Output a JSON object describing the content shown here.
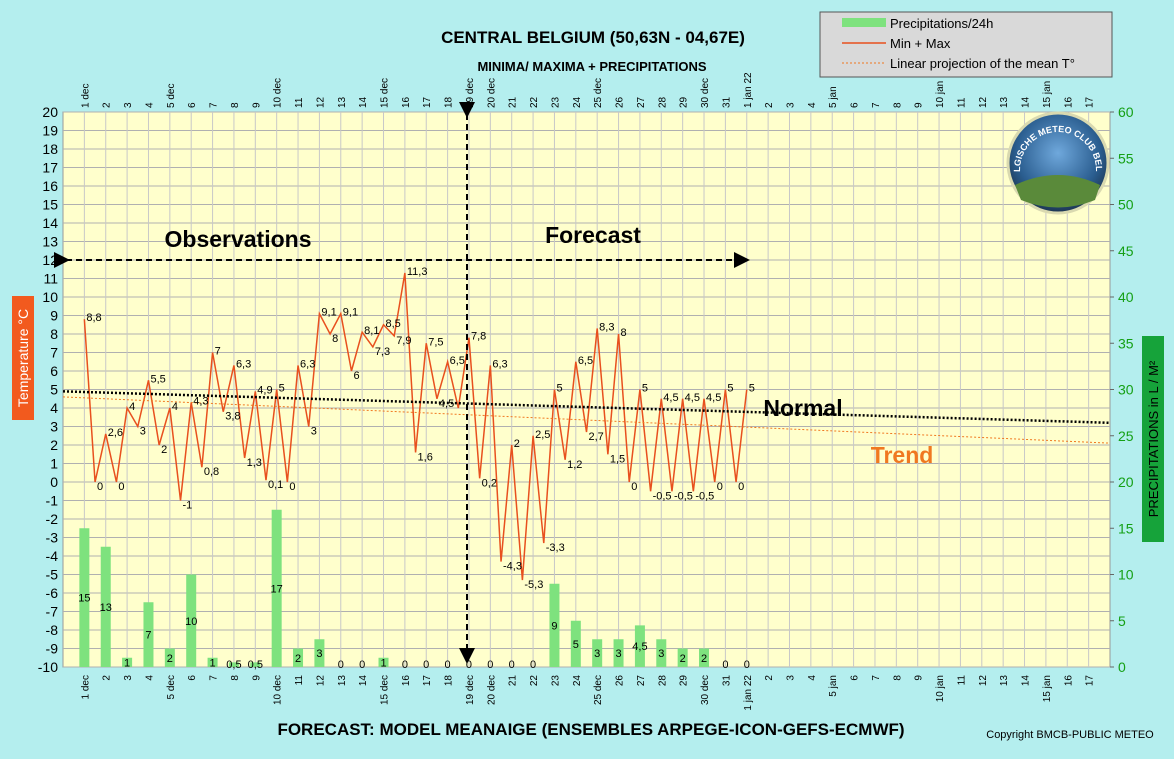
{
  "chart_data": {
    "type": "combo",
    "title": "CENTRAL BELGIUM (50,63N - 04,67E)",
    "subtitle": "MINIMA/ MAXIMA + PRECIPITATIONS",
    "x_label": "FORECAST: MODEL MEANAIGE (ENSEMBLES ARPEGE-ICON-GEFS-ECMWF)",
    "y_label": "Temperature  °C",
    "y2_label": "PRECIPITATIONS in L / M²",
    "copyright": "Copyright BMCB-PUBLIC METEO",
    "logo": "BELGISCHE METEO CLUB BELGE",
    "annotations": {
      "observations": "Observations",
      "forecast": "Forecast",
      "trend": "Trend"
    },
    "xlim": [
      0,
      49
    ],
    "xticks": [
      {
        "value": 1,
        "label": "1 dec"
      },
      2,
      3,
      4,
      {
        "value": 5,
        "label": "5 dec"
      },
      6,
      7,
      8,
      9,
      {
        "value": 10,
        "label": "10 dec"
      },
      11,
      12,
      13,
      14,
      {
        "value": 15,
        "label": "15 dec"
      },
      16,
      17,
      18,
      {
        "value": 19,
        "label": "19 dec"
      },
      {
        "value": 20,
        "label": "20 dec"
      },
      21,
      22,
      23,
      24,
      {
        "value": 25,
        "label": "25 dec"
      },
      26,
      27,
      28,
      29,
      {
        "value": 30,
        "label": "30 dec"
      },
      31,
      {
        "value": 32,
        "label": "1 jan 22"
      },
      {
        "value": 33,
        "label": "2"
      },
      {
        "value": 34,
        "label": "3"
      },
      {
        "value": 35,
        "label": "4"
      },
      {
        "value": 36,
        "label": "5 jan"
      },
      {
        "value": 37,
        "label": "6"
      },
      {
        "value": 38,
        "label": "7"
      },
      {
        "value": 39,
        "label": "8"
      },
      {
        "value": 40,
        "label": "9"
      },
      {
        "value": 41,
        "label": "10 jan"
      },
      {
        "value": 42,
        "label": "11"
      },
      {
        "value": 43,
        "label": "12"
      },
      {
        "value": 44,
        "label": "13"
      },
      {
        "value": 45,
        "label": "14"
      },
      {
        "value": 46,
        "label": "15 jan"
      },
      {
        "value": 47,
        "label": "16"
      },
      {
        "value": 48,
        "label": "17"
      }
    ],
    "ylim": [
      -10,
      20
    ],
    "yticks": [
      -10,
      -9,
      -8,
      -7,
      -6,
      -5,
      -4,
      -3,
      -2,
      -1,
      0,
      1,
      2,
      3,
      4,
      5,
      6,
      7,
      8,
      9,
      10,
      11,
      12,
      13,
      14,
      15,
      16,
      17,
      18,
      19,
      20
    ],
    "y2lim": [
      0,
      60
    ],
    "y2ticks": [
      0,
      5,
      10,
      15,
      20,
      25,
      30,
      35,
      40,
      45,
      50,
      55,
      60
    ],
    "grid": true,
    "legend": "top-right",
    "series": [
      {
        "name": "Precipitations/24h",
        "type": "bar",
        "axis": "y2",
        "color": "#7ee27e",
        "x": [
          1,
          2,
          3,
          4,
          5,
          6,
          7,
          8,
          9,
          10,
          11,
          12,
          13,
          14,
          15,
          16,
          17,
          18,
          19,
          20,
          21,
          22,
          23,
          24,
          25,
          26,
          27,
          28,
          29,
          30,
          31,
          32
        ],
        "values": [
          15,
          13,
          1,
          7,
          2,
          10,
          1,
          0.5,
          0.5,
          17,
          2,
          3,
          0,
          0,
          1,
          0,
          0,
          0,
          0,
          0,
          0,
          0,
          9,
          5,
          3,
          3,
          4.5,
          3,
          2,
          2,
          0,
          0
        ],
        "value_labels": [
          "15",
          "13",
          "1",
          "7",
          "2",
          "10",
          "1",
          "0,5",
          "0,5",
          "17",
          "2",
          "3",
          "0",
          "0",
          "1",
          "0",
          "0",
          "0",
          "0",
          "0",
          "0",
          "0",
          "9",
          "5",
          "3",
          "3",
          "4,5",
          "3",
          "2",
          "2",
          "0",
          "0"
        ]
      },
      {
        "name": "Min + Max",
        "type": "line",
        "color": "#e8501e",
        "x": [
          1,
          1.5,
          2,
          2.5,
          3,
          3.5,
          4,
          4.5,
          5,
          5.5,
          6,
          6.5,
          7,
          7.5,
          8,
          8.5,
          9,
          9.5,
          10,
          10.5,
          11,
          11.5,
          12,
          12.5,
          13,
          13.5,
          14,
          14.5,
          15,
          15.5,
          16,
          16.5,
          17,
          17.5,
          18,
          18.5,
          19,
          19.5,
          20,
          20.5,
          21,
          21.5,
          22,
          22.5,
          23,
          23.5,
          24,
          24.5,
          25,
          25.5,
          26,
          26.5,
          27,
          27.5,
          28,
          28.5,
          29,
          29.5,
          30,
          30.5,
          31,
          31.5,
          32
        ],
        "values": [
          8.8,
          0,
          2.6,
          0,
          4,
          3,
          5.5,
          2,
          4,
          -1,
          4.3,
          0.8,
          7,
          3.8,
          6.3,
          1.3,
          4.9,
          0.1,
          5,
          0,
          6.3,
          3,
          9.1,
          8,
          9.1,
          6,
          8.1,
          7.3,
          8.5,
          7.9,
          11.3,
          1.6,
          7.5,
          4.5,
          6.5,
          4,
          7.8,
          0.2,
          6.3,
          -4.3,
          2,
          -5.3,
          2.5,
          -3.3,
          5,
          1.2,
          6.5,
          2.7,
          8.3,
          1.5,
          8,
          0,
          5,
          -0.5,
          4.5,
          -0.5,
          4.5,
          -0.5,
          4.5,
          0,
          5,
          0,
          5
        ],
        "value_labels": [
          "8,8",
          "0",
          "2,6",
          "0",
          "4",
          "3",
          "5,5",
          "2",
          "4",
          "-1",
          "4,3",
          "0,8",
          "7",
          "3,8",
          "6,3",
          "1,3",
          "4,9",
          "0,1",
          "5",
          "0",
          "6,3",
          "3",
          "9,1",
          "8",
          "9,1",
          "6",
          "8,1",
          "7,3",
          "8,5",
          "7,9",
          "11,3",
          "1,6",
          "7,5",
          "4,5",
          "6,5",
          null,
          "7,8",
          "0,2",
          "6,3",
          "-4,3",
          "2",
          "-5,3",
          "2,5",
          "-3,3",
          "5",
          "1,2",
          "6,5",
          "2,7",
          "8,3",
          "1,5",
          "8",
          "0",
          "5",
          "-0,5",
          "4,5",
          "-0,5",
          "4,5",
          "-0,5",
          "4,5",
          "0",
          "5",
          "0",
          "5"
        ]
      },
      {
        "name": "Linear projection of the mean T°",
        "type": "dotted",
        "color": "#f07820",
        "x": [
          0,
          49
        ],
        "values": [
          4.6,
          2.1
        ]
      },
      {
        "name": "Normal",
        "type": "dotted-label",
        "color": "#000000",
        "x": [
          0,
          49
        ],
        "values": [
          4.9,
          3.2
        ]
      }
    ]
  }
}
